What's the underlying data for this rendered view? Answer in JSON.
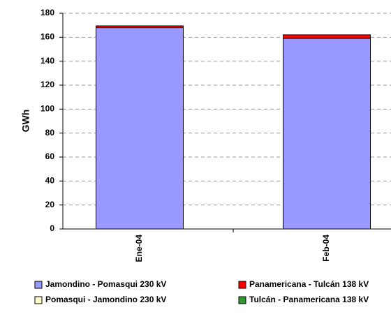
{
  "chart_data": {
    "type": "stacked-bar",
    "y_label": "GWh",
    "categories": [
      "Ene-04",
      "Feb-04"
    ],
    "series": [
      {
        "name": "Jamondino - Pomasqui 230 kV",
        "color": "#9999ff",
        "values": [
          168,
          159
        ]
      },
      {
        "name": "Panamericana - Tulcán 138 kV",
        "color": "#ff0000",
        "values": [
          1.5,
          3
        ]
      },
      {
        "name": "Pomasqui - Jamondino 230 kV",
        "color": "#ffffcc",
        "values": [
          0,
          0
        ]
      },
      {
        "name": "Tulcán - Panamericana 138 kV",
        "color": "#339933",
        "values": [
          0,
          0
        ]
      }
    ],
    "ylim": [
      0,
      180
    ],
    "yticks": [
      0,
      20,
      40,
      60,
      80,
      100,
      120,
      140,
      160,
      180
    ],
    "grid": true
  }
}
